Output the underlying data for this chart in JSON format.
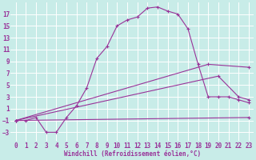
{
  "bg_color": "#c8ece8",
  "line_color": "#993399",
  "grid_color": "#ffffff",
  "xlim": [
    -0.5,
    23.5
  ],
  "ylim": [
    -4.5,
    19
  ],
  "yticks": [
    -3,
    -1,
    1,
    3,
    5,
    7,
    9,
    11,
    13,
    15,
    17
  ],
  "xticks": [
    0,
    1,
    2,
    3,
    4,
    5,
    6,
    7,
    8,
    9,
    10,
    11,
    12,
    13,
    14,
    15,
    16,
    17,
    18,
    19,
    20,
    21,
    22,
    23
  ],
  "xlabel": "Windchill (Refroidissement éolien,°C)",
  "line1_x": [
    0,
    1,
    2,
    3,
    4,
    5,
    6,
    7,
    8,
    9,
    10,
    11,
    12,
    13,
    14,
    15,
    16,
    17,
    18,
    19,
    20,
    21,
    22,
    23
  ],
  "line1_y": [
    -1,
    -1,
    -0.5,
    -3,
    -3,
    -0.5,
    1.5,
    4.5,
    9.5,
    11.5,
    15,
    16,
    16.5,
    18,
    18.2,
    17.5,
    17,
    14.5,
    8.5,
    3,
    3,
    3,
    2.5,
    2
  ],
  "line2_x": [
    0,
    19,
    23
  ],
  "line2_y": [
    -1,
    8.5,
    8
  ],
  "line3_x": [
    0,
    20,
    22,
    23
  ],
  "line3_y": [
    -1,
    6.5,
    3.0,
    2.5
  ],
  "line4_x": [
    0,
    23
  ],
  "line4_y": [
    -1,
    -0.5
  ],
  "xlabel_fontsize": 5.5,
  "tick_fontsize": 5.5
}
